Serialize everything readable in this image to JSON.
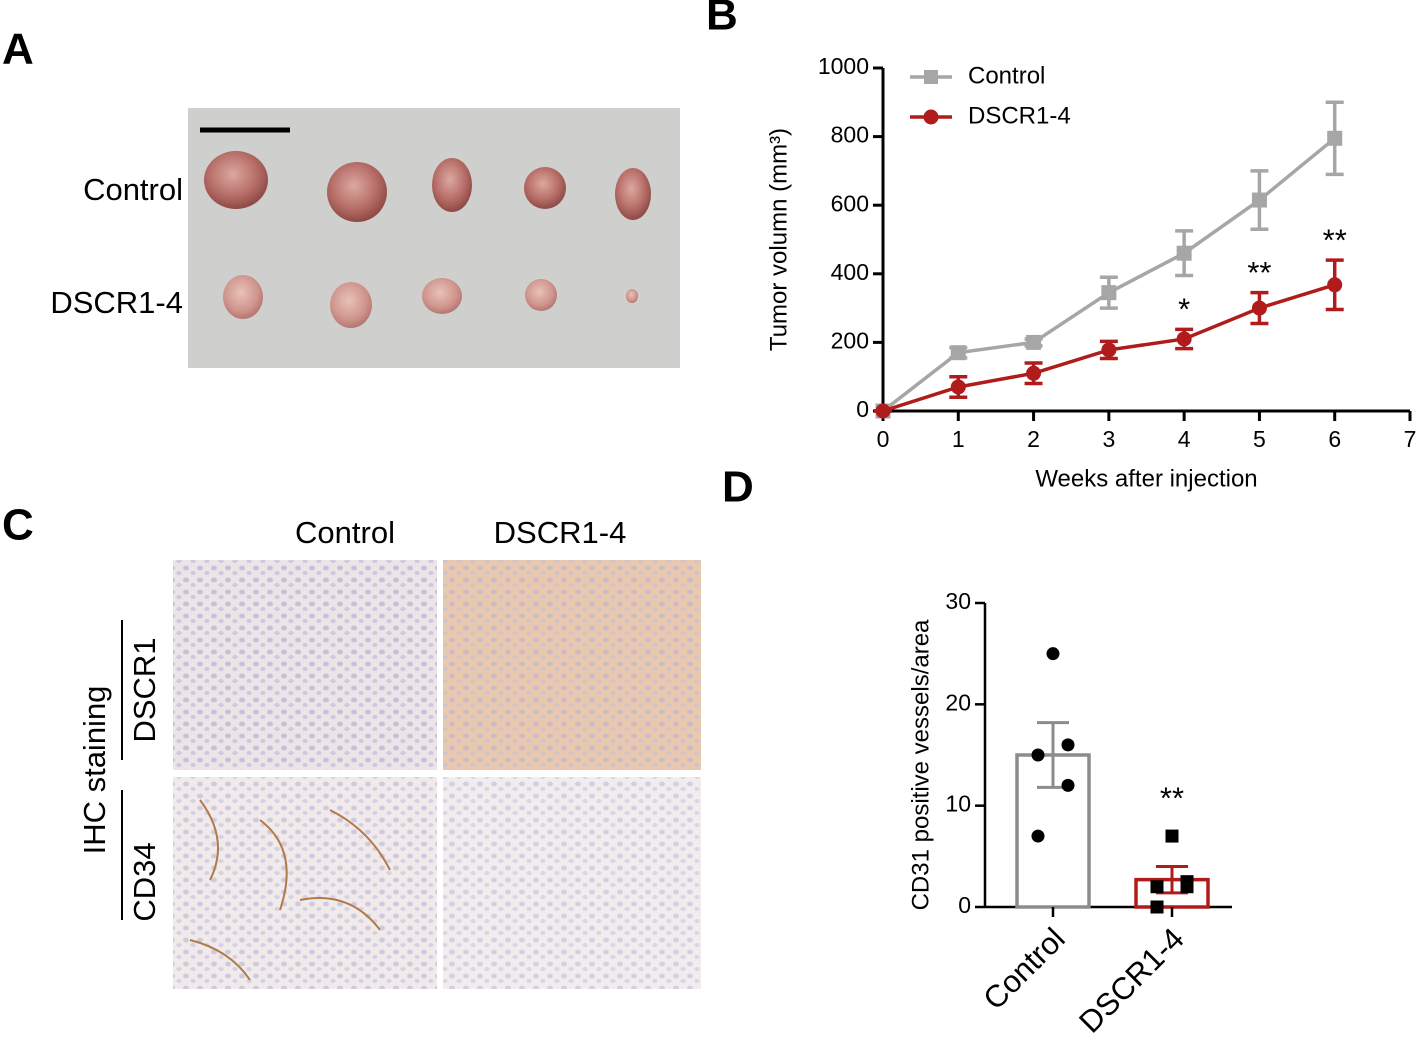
{
  "panels": {
    "A": {
      "label": "A",
      "row_labels": [
        "Control",
        "DSCR1-4"
      ]
    },
    "C": {
      "label": "C",
      "column_labels": [
        "Control",
        "DSCR1-4"
      ],
      "row_labels": [
        "DSCR1",
        "CD34"
      ],
      "group_label": "IHC staining"
    }
  },
  "chart_data": [
    {
      "panel_label": "B",
      "type": "line",
      "x_label": "Weeks after injection",
      "y_label": "Tumor volumn (mm³)",
      "x": [
        0,
        1,
        2,
        3,
        4,
        5,
        6
      ],
      "series": [
        {
          "name": "Control",
          "color": "#a6a6a6",
          "marker": "square",
          "values": [
            0,
            170,
            200,
            345,
            460,
            615,
            795
          ],
          "errors": [
            0,
            15,
            10,
            45,
            65,
            85,
            105
          ]
        },
        {
          "name": "DSCR1-4",
          "color": "#b01c1c",
          "marker": "circle",
          "values": [
            0,
            70,
            110,
            178,
            210,
            300,
            368
          ],
          "errors": [
            0,
            30,
            30,
            25,
            28,
            45,
            72
          ]
        }
      ],
      "annotations": [
        {
          "x": 4,
          "text": "*"
        },
        {
          "x": 5,
          "text": "**"
        },
        {
          "x": 6,
          "text": "**"
        }
      ],
      "xlim": [
        0,
        7
      ],
      "xticks": [
        0,
        1,
        2,
        3,
        4,
        5,
        6,
        7
      ],
      "ylim": [
        0,
        1000
      ],
      "yticks": [
        0,
        200,
        400,
        600,
        800,
        1000
      ],
      "legend": "top-left"
    },
    {
      "panel_label": "D",
      "type": "bar",
      "y_label": "CD31 positive vessels/area",
      "categories": [
        "Control",
        "DSCR1-4"
      ],
      "colors": [
        "#8c8c8c",
        "#b01c1c"
      ],
      "values": [
        15,
        2.7
      ],
      "errors": [
        3.2,
        1.3
      ],
      "points": [
        [
          25,
          15,
          12,
          7,
          16
        ],
        [
          7,
          2,
          2,
          0,
          2.5
        ]
      ],
      "point_markers": [
        "circle",
        "square"
      ],
      "annotations": [
        {
          "category": 1,
          "text": "**"
        }
      ],
      "ylim": [
        0,
        30
      ],
      "yticks": [
        0,
        10,
        20,
        30
      ]
    }
  ]
}
